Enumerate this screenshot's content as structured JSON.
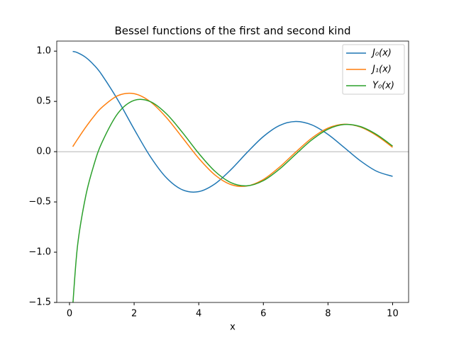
{
  "chart_data": {
    "type": "line",
    "title": "Bessel functions of the first and second kind",
    "x_label": "x",
    "x": [
      0.1,
      0.25,
      0.5,
      0.75,
      1,
      1.5,
      2,
      2.5,
      3,
      3.5,
      4,
      4.5,
      5,
      5.5,
      6,
      6.5,
      7,
      7.5,
      8,
      8.5,
      9,
      9.5,
      10
    ],
    "series": [
      {
        "name": "J₀(x)",
        "color": "#1f77b4",
        "values": [
          0.9975,
          0.9844,
          0.9385,
          0.8642,
          0.7652,
          0.5118,
          0.2239,
          -0.0484,
          -0.2601,
          -0.3801,
          -0.3971,
          -0.3205,
          -0.1776,
          -0.0068,
          0.1506,
          0.2601,
          0.3001,
          0.2663,
          0.1717,
          0.0419,
          -0.0903,
          -0.1939,
          -0.2459
        ]
      },
      {
        "name": "J₁(x)",
        "color": "#ff7f0e",
        "values": [
          0.0499,
          0.124,
          0.2423,
          0.3492,
          0.4401,
          0.5579,
          0.5767,
          0.4971,
          0.3391,
          0.1374,
          -0.066,
          -0.2311,
          -0.3276,
          -0.3414,
          -0.2767,
          -0.1538,
          -0.0047,
          0.1352,
          0.2346,
          0.2731,
          0.2453,
          0.1613,
          0.0435
        ]
      },
      {
        "name": "Y₀(x)",
        "color": "#2ca02c",
        "values": [
          -1.5342,
          -0.9316,
          -0.4445,
          -0.1372,
          0.0883,
          0.3824,
          0.5104,
          0.4981,
          0.3769,
          0.189,
          -0.0169,
          -0.1947,
          -0.3085,
          -0.3395,
          -0.2882,
          -0.1732,
          -0.0259,
          0.1173,
          0.2235,
          0.2702,
          0.2499,
          0.1712,
          0.0557
        ]
      }
    ],
    "xlim": [
      -0.395,
      10.495
    ],
    "ylim": [
      -1.5,
      1.1
    ],
    "xticks": [
      0,
      2,
      4,
      6,
      8,
      10
    ],
    "yticks": [
      {
        "value": 1.0,
        "label": "1.0"
      },
      {
        "value": 0.5,
        "label": "0.5"
      },
      {
        "value": 0.0,
        "label": "0.0"
      },
      {
        "value": -0.5,
        "label": "−0.5"
      },
      {
        "value": -1.0,
        "label": "−1.0"
      },
      {
        "value": -1.5,
        "label": "−1.5"
      }
    ],
    "reference_line": 0,
    "reference_color": "#999999",
    "legend": "upper right"
  }
}
